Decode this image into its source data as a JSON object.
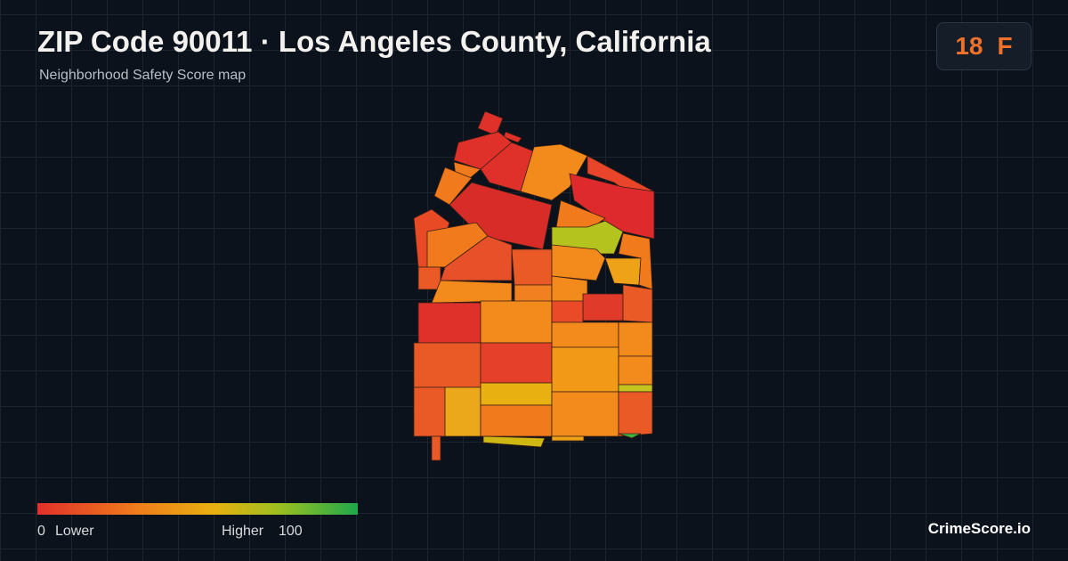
{
  "header": {
    "title": "ZIP Code 90011 · Los Angeles County, California",
    "subtitle": "Neighborhood Safety Score map"
  },
  "score": {
    "value": "18",
    "grade": "F"
  },
  "legend": {
    "min": "0",
    "min_label": "Lower",
    "max_label": "Higher",
    "max": "100"
  },
  "brand": "CrimeScore.io"
}
